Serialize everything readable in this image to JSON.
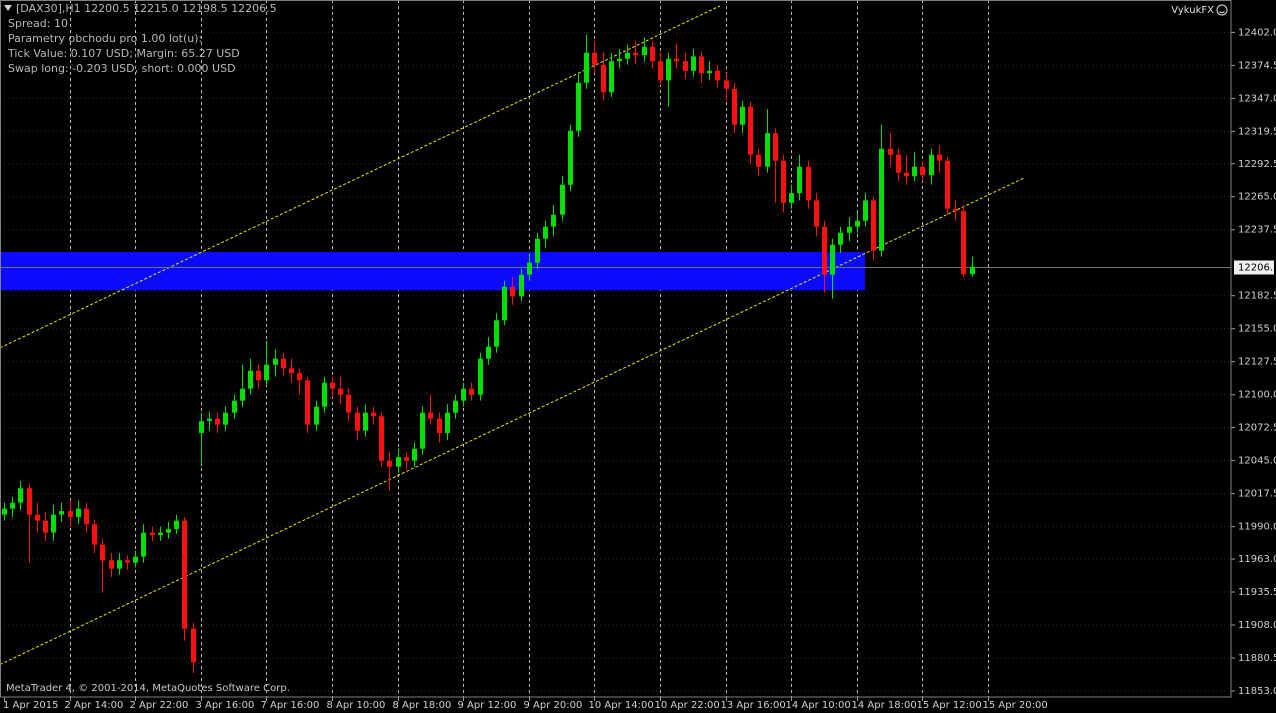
{
  "chart_data": {
    "type": "candlestick",
    "title": "[DAX30],H1  12200.5 12215.0 12198.5 12206.5",
    "info": [
      "Spread: 10",
      "Parametry obchodu pro 1.00 lot(u):",
      "Tick Value: 0.107 USD; Margin: 65.27 USD",
      "Swap long: -0.203 USD, short: 0.000 USD"
    ],
    "broker": "VykukFX",
    "footer": "MetaTrader 4, © 2001-2014, MetaQuotes Software Corp.",
    "categories": [
      "1 Apr 2015",
      null,
      null,
      null,
      null,
      null,
      null,
      null,
      "2 Apr 14:00",
      null,
      null,
      null,
      null,
      null,
      null,
      null,
      "2 Apr 22:00",
      null,
      null,
      null,
      null,
      null,
      null,
      null,
      "3 Apr 16:00",
      null,
      null,
      null,
      null,
      null,
      null,
      null,
      "7 Apr 16:00",
      null,
      null,
      null,
      null,
      null,
      null,
      null,
      "8 Apr 10:00",
      null,
      null,
      null,
      null,
      null,
      null,
      null,
      "8 Apr 18:00",
      null,
      null,
      null,
      null,
      null,
      null,
      null,
      "9 Apr 12:00",
      null,
      null,
      null,
      null,
      null,
      null,
      null,
      "9 Apr 20:00",
      null,
      null,
      null,
      null,
      null,
      null,
      null,
      "10 Apr 14:00",
      null,
      null,
      null,
      null,
      null,
      null,
      null,
      "10 Apr 22:00",
      null,
      null,
      null,
      null,
      null,
      null,
      null,
      "13 Apr 16:00",
      null,
      null,
      null,
      null,
      null,
      null,
      null,
      "14 Apr 10:00",
      null,
      null,
      null,
      null,
      null,
      null,
      null,
      "14 Apr 18:00",
      null,
      null,
      null,
      null,
      null,
      null,
      null,
      "15 Apr 12:00",
      null,
      null,
      null,
      null,
      null,
      null,
      null,
      "15 Apr 20:00"
    ],
    "open": [
      12000,
      12005,
      12010,
      12022,
      12000,
      11995,
      11985,
      12000,
      12003,
      11998,
      12005,
      11992,
      11975,
      11962,
      11955,
      11962,
      11960,
      11965,
      11985,
      11983,
      11985,
      11988,
      11995,
      11905,
      12068,
      12078,
      12080,
      12075,
      12085,
      12095,
      12105,
      12120,
      12112,
      12125,
      12130,
      12122,
      12118,
      12112,
      12075,
      12090,
      12110,
      12105,
      12100,
      12085,
      12070,
      12085,
      12082,
      12045,
      12040,
      12048,
      12045,
      12055,
      12085,
      12080,
      12068,
      12085,
      12095,
      12105,
      12100,
      12130,
      12140,
      12162,
      12190,
      12182,
      12200,
      12210,
      12230,
      12240,
      12250,
      12275,
      12320,
      12360,
      12385,
      12375,
      12352,
      12378,
      12380,
      12385,
      12383,
      12390,
      12378,
      12362,
      12380,
      12378,
      12370,
      12382,
      12368,
      12370,
      12362,
      12355,
      12325,
      12340,
      12300,
      12290,
      12318,
      12295,
      12260,
      12268,
      12290,
      12262,
      12240,
      12200,
      12225,
      12235,
      12240,
      12245,
      12262,
      12220,
      12305,
      12300,
      12285,
      12282,
      12290,
      12283,
      12300,
      12295,
      12255,
      12253,
      12200.5,
      null,
      null
    ],
    "high": [
      12010,
      12015,
      12028,
      12026,
      12010,
      12002,
      12008,
      12010,
      12012,
      12012,
      12010,
      11996,
      11980,
      11968,
      11968,
      11966,
      11970,
      11992,
      11990,
      11990,
      11994,
      12000,
      11998,
      11910,
      12085,
      12086,
      12085,
      12090,
      12100,
      12125,
      12130,
      12125,
      12145,
      12138,
      12135,
      12130,
      12122,
      12115,
      12095,
      12115,
      12115,
      12115,
      12105,
      12090,
      12092,
      12090,
      12085,
      12052,
      12055,
      12052,
      12060,
      12090,
      12100,
      12085,
      12092,
      12100,
      12110,
      12110,
      12135,
      12148,
      12168,
      12195,
      12198,
      12205,
      12218,
      12235,
      12245,
      12258,
      12282,
      12325,
      12368,
      12400,
      12395,
      12385,
      12385,
      12388,
      12392,
      12395,
      12398,
      12395,
      12385,
      12385,
      12392,
      12385,
      12388,
      12386,
      12378,
      12375,
      12368,
      12360,
      12345,
      12344,
      12305,
      12338,
      12322,
      12300,
      12275,
      12300,
      12295,
      12268,
      12245,
      12230,
      12240,
      12248,
      12252,
      12268,
      12265,
      12325,
      12318,
      12305,
      12300,
      12302,
      12295,
      12305,
      12308,
      12298,
      12262,
      12258,
      12215,
      null,
      null
    ],
    "low": [
      11995,
      11998,
      12004,
      11960,
      11985,
      11978,
      11978,
      11994,
      11990,
      11992,
      11985,
      11968,
      11935,
      11948,
      11950,
      11954,
      11956,
      11960,
      11978,
      11978,
      11980,
      11984,
      11895,
      11868,
      12040,
      12070,
      12068,
      12070,
      12080,
      12090,
      12100,
      12105,
      12108,
      12115,
      12116,
      12110,
      12100,
      12068,
      12070,
      12085,
      12098,
      12092,
      12078,
      12062,
      12065,
      12075,
      12040,
      12020,
      12035,
      12038,
      12040,
      12050,
      12075,
      12060,
      12062,
      12080,
      12090,
      12095,
      12095,
      12125,
      12135,
      12158,
      12175,
      12178,
      12195,
      12205,
      12222,
      12232,
      12245,
      12270,
      12315,
      12355,
      12368,
      12345,
      12348,
      12372,
      12375,
      12376,
      12378,
      12372,
      12358,
      12340,
      12372,
      12363,
      12365,
      12360,
      12362,
      12356,
      12345,
      12318,
      12318,
      12292,
      12282,
      12285,
      12260,
      12252,
      12255,
      12262,
      12255,
      12232,
      12185,
      12180,
      12218,
      12228,
      12235,
      12240,
      12212,
      12215,
      12290,
      12278,
      12275,
      12278,
      12278,
      12275,
      12285,
      12250,
      12245,
      12198,
      12198.5,
      null,
      null
    ],
    "close": [
      12005,
      12010,
      12022,
      12000,
      11995,
      11985,
      12000,
      12003,
      11998,
      12005,
      11992,
      11975,
      11962,
      11955,
      11962,
      11960,
      11965,
      11985,
      11983,
      11985,
      11988,
      11995,
      11905,
      11877,
      12078,
      12080,
      12075,
      12085,
      12095,
      12105,
      12120,
      12112,
      12125,
      12130,
      12122,
      12118,
      12112,
      12075,
      12090,
      12110,
      12105,
      12100,
      12085,
      12070,
      12085,
      12082,
      12045,
      12040,
      12048,
      12045,
      12055,
      12085,
      12080,
      12068,
      12085,
      12095,
      12105,
      12100,
      12130,
      12140,
      12162,
      12190,
      12182,
      12200,
      12210,
      12230,
      12240,
      12250,
      12275,
      12320,
      12360,
      12385,
      12375,
      12352,
      12378,
      12380,
      12385,
      12383,
      12390,
      12378,
      12362,
      12380,
      12378,
      12370,
      12382,
      12368,
      12370,
      12362,
      12355,
      12325,
      12340,
      12300,
      12290,
      12318,
      12295,
      12260,
      12268,
      12290,
      12262,
      12240,
      12200,
      12225,
      12235,
      12240,
      12245,
      12262,
      12220,
      12305,
      12300,
      12285,
      12282,
      12290,
      12283,
      12300,
      12295,
      12255,
      12253,
      12200.5,
      12206.5,
      null,
      null
    ],
    "up_color": "#00e000",
    "down_color": "#ff1010",
    "ylim": [
      11848,
      12429
    ],
    "yticks": [
      {
        "value": 12402,
        "label": "12402.0"
      },
      {
        "value": 12374.5,
        "label": "12374.5"
      },
      {
        "value": 12347,
        "label": "12347.0"
      },
      {
        "value": 12319.5,
        "label": "12319.5"
      },
      {
        "value": 12292.5,
        "label": "12292.5"
      },
      {
        "value": 12265,
        "label": "12265.0"
      },
      {
        "value": 12237.5,
        "label": "12237.5"
      },
      {
        "value": 12182.5,
        "label": "12182.5"
      },
      {
        "value": 12155,
        "label": "12155.0"
      },
      {
        "value": 12127.5,
        "label": "12127.5"
      },
      {
        "value": 12100,
        "label": "12100.0"
      },
      {
        "value": 12072.5,
        "label": "12072.5"
      },
      {
        "value": 12045,
        "label": "12045.0"
      },
      {
        "value": 12017.5,
        "label": "12017.5"
      },
      {
        "value": 11990,
        "label": "11990.0"
      },
      {
        "value": 11963,
        "label": "11963.0"
      },
      {
        "value": 11935.5,
        "label": "11935.5"
      },
      {
        "value": 11908,
        "label": "11908.0"
      },
      {
        "value": 11880.5,
        "label": "11880.5"
      },
      {
        "value": 11853,
        "label": "11853.0"
      }
    ],
    "grid": true,
    "zone": {
      "x": [
        -0.5,
        105
      ],
      "y": [
        12187,
        12219
      ],
      "color": "#0a0aff"
    },
    "channel": {
      "color": "#e8e800",
      "lines": [
        {
          "x": [
            -0.5,
            87.3
          ],
          "y": [
            12139,
            12424
          ]
        },
        {
          "x": [
            -0.5,
            124.5
          ],
          "y": [
            11875,
            12281
          ]
        }
      ]
    }
  }
}
